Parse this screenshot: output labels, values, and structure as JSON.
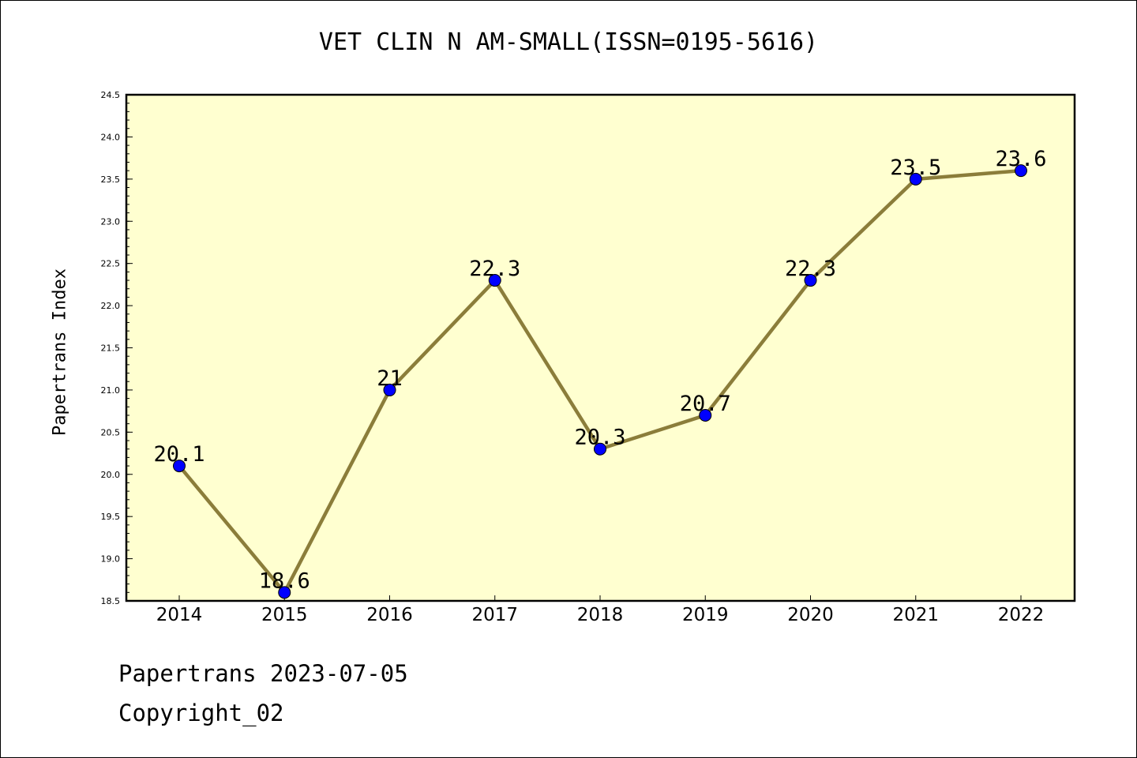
{
  "chart_data": {
    "type": "line",
    "title": "VET CLIN N AM-SMALL(ISSN=0195-5616)",
    "xlabel": "",
    "ylabel": "Papertrans Index",
    "x": [
      "2014",
      "2015",
      "2016",
      "2017",
      "2018",
      "2019",
      "2020",
      "2021",
      "2022"
    ],
    "series": [
      {
        "values": [
          20.1,
          18.6,
          21,
          22.3,
          20.3,
          20.7,
          22.3,
          23.5,
          23.6
        ],
        "labels": [
          "20.1",
          "18.6",
          "21",
          "22.3",
          "20.3",
          "20.7",
          "22.3",
          "23.5",
          "23.6"
        ]
      }
    ],
    "ylim": [
      18.5,
      24.5
    ],
    "yticks": [
      "18.5",
      "19.0",
      "19.5",
      "20.0",
      "20.5",
      "21.0",
      "21.5",
      "22.0",
      "22.5",
      "23.0",
      "23.5",
      "24.0",
      "24.5"
    ],
    "grid": false,
    "plot_background": "#ffffd0",
    "line_color": "#8b7d3a",
    "marker_color": "#0000ff"
  },
  "footer": {
    "line1": "Papertrans 2023-07-05",
    "line2": "Copyright_02"
  }
}
